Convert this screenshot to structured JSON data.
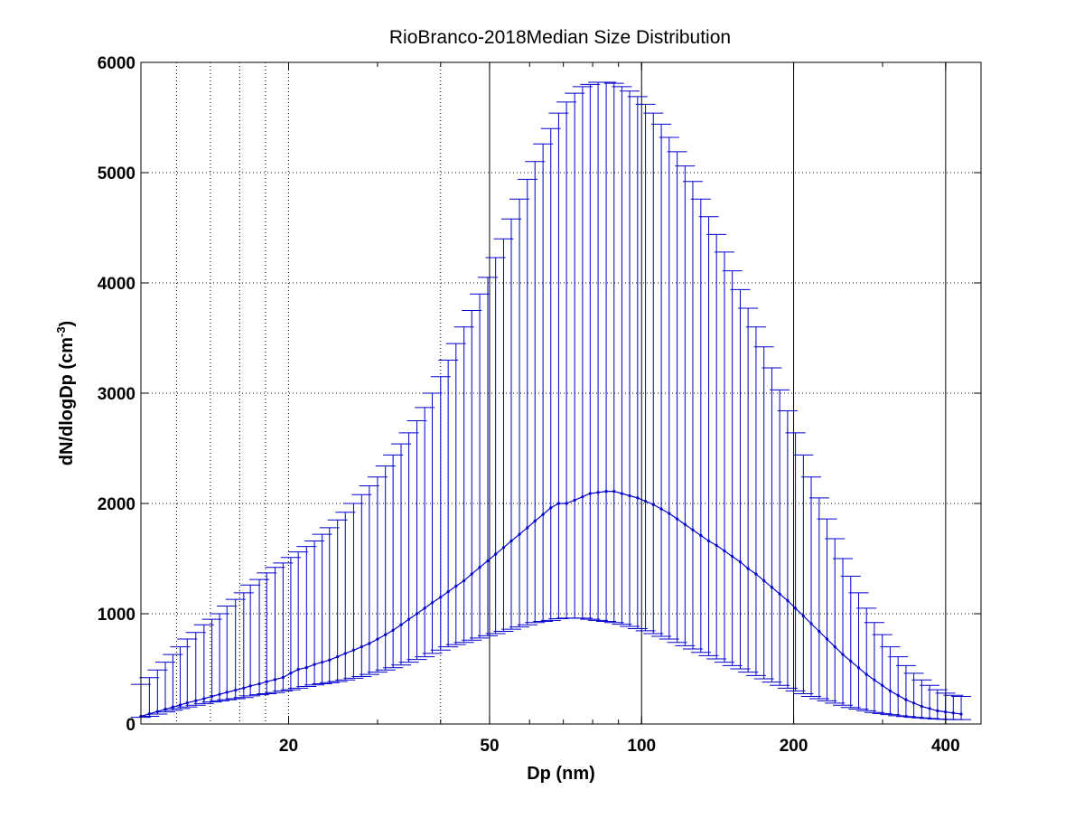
{
  "chart_data": {
    "type": "line",
    "title": "RioBranco-2018Median Size Distribution",
    "xlabel": "Dp (nm)",
    "ylabel_main": "dN/dlogDp (cm",
    "ylabel_exp": "-3",
    "ylabel_close": ")",
    "x_scale": "log",
    "xlim": [
      10.2,
      470
    ],
    "ylim": [
      0,
      6000
    ],
    "x_major_ticks": [
      20,
      50,
      100,
      200,
      400
    ],
    "x_tick_labels": [
      "20",
      "50",
      "100",
      "200",
      "400"
    ],
    "x_minor_ticks": [
      12,
      14,
      16,
      18,
      40
    ],
    "y_ticks": [
      0,
      1000,
      2000,
      3000,
      4000,
      5000,
      6000
    ],
    "y_tick_labels": [
      "0",
      "1000",
      "2000",
      "3000",
      "4000",
      "5000",
      "6000"
    ],
    "grid": true,
    "series_color": "#0000cc",
    "series": [
      {
        "x": [
          10.2,
          10.6,
          11.0,
          11.4,
          11.8,
          12.2,
          12.6,
          13.1,
          13.6,
          14.1,
          14.6,
          15.1,
          15.7,
          16.3,
          16.8,
          17.5,
          18.1,
          18.8,
          19.5,
          20.2,
          20.9,
          21.7,
          22.5,
          23.3,
          24.1,
          25.0,
          25.9,
          26.9,
          27.9,
          28.9,
          30.0,
          31.1,
          32.2,
          33.4,
          34.6,
          35.9,
          37.2,
          38.5,
          40.0,
          41.4,
          42.9,
          44.5,
          46.1,
          47.8,
          49.6,
          51.4,
          53.3,
          55.2,
          57.3,
          59.4,
          61.5,
          63.8,
          66.1,
          68.5,
          71.0,
          73.7,
          76.4,
          79.1,
          82.0,
          85.1,
          88.2,
          91.4,
          94.7,
          98.2,
          101.8,
          105.5,
          109.4,
          113.4,
          117.6,
          121.9,
          126.3,
          131.0,
          135.8,
          140.7,
          145.9,
          151.2,
          156.8,
          162.5,
          168.5,
          174.7,
          181.1,
          187.7,
          194.6,
          201.7,
          209.1,
          216.7,
          224.7,
          232.9,
          241.4,
          250.3,
          259.5,
          269.0,
          278.8,
          289.0,
          299.6,
          310.6,
          322.0,
          333.8,
          346.0,
          358.7,
          371.8,
          385.4,
          399.5,
          414.2,
          429.4
        ],
        "y": [
          70,
          92,
          113,
          134,
          154,
          173,
          192,
          211,
          230,
          250,
          269,
          288,
          307,
          326,
          345,
          364,
          384,
          403,
          422,
          461,
          495,
          511,
          540,
          560,
          580,
          610,
          640,
          670,
          700,
          730,
          770,
          810,
          850,
          900,
          950,
          1000,
          1050,
          1100,
          1150,
          1200,
          1250,
          1300,
          1360,
          1420,
          1480,
          1540,
          1600,
          1660,
          1720,
          1780,
          1840,
          1900,
          1960,
          2000,
          2000,
          2030,
          2060,
          2090,
          2100,
          2110,
          2110,
          2090,
          2070,
          2050,
          2020,
          1990,
          1950,
          1910,
          1860,
          1810,
          1760,
          1710,
          1660,
          1620,
          1570,
          1520,
          1470,
          1410,
          1360,
          1300,
          1240,
          1180,
          1120,
          1050,
          980,
          910,
          840,
          770,
          700,
          630,
          570,
          510,
          450,
          400,
          350,
          300,
          260,
          220,
          190,
          160,
          140,
          120,
          110,
          100,
          90
        ],
        "upper": [
          360,
          420,
          490,
          560,
          630,
          700,
          770,
          830,
          900,
          950,
          1000,
          1070,
          1130,
          1190,
          1260,
          1310,
          1370,
          1420,
          1460,
          1510,
          1560,
          1610,
          1660,
          1720,
          1780,
          1850,
          1920,
          2000,
          2080,
          2160,
          2240,
          2340,
          2440,
          2540,
          2640,
          2750,
          2870,
          3000,
          3150,
          3300,
          3450,
          3600,
          3750,
          3900,
          4050,
          4230,
          4400,
          4580,
          4760,
          4940,
          5100,
          5260,
          5400,
          5540,
          5640,
          5720,
          5780,
          5800,
          5820,
          5820,
          5810,
          5780,
          5740,
          5690,
          5620,
          5540,
          5440,
          5320,
          5190,
          5060,
          4920,
          4760,
          4600,
          4440,
          4280,
          4110,
          3940,
          3770,
          3600,
          3420,
          3230,
          3030,
          2840,
          2640,
          2440,
          2240,
          2050,
          1860,
          1680,
          1500,
          1340,
          1190,
          1050,
          920,
          810,
          700,
          610,
          530,
          460,
          400,
          350,
          310,
          280,
          260,
          250
        ],
        "lower": [
          60,
          70,
          90,
          110,
          125,
          140,
          155,
          170,
          185,
          200,
          210,
          220,
          230,
          240,
          255,
          265,
          275,
          285,
          300,
          310,
          325,
          340,
          355,
          365,
          375,
          385,
          400,
          415,
          430,
          450,
          470,
          490,
          510,
          535,
          560,
          585,
          610,
          640,
          670,
          700,
          720,
          740,
          760,
          780,
          800,
          820,
          840,
          860,
          880,
          900,
          920,
          930,
          940,
          955,
          960,
          960,
          960,
          950,
          940,
          930,
          920,
          905,
          885,
          865,
          845,
          820,
          795,
          770,
          740,
          710,
          680,
          650,
          620,
          590,
          560,
          530,
          500,
          470,
          440,
          410,
          380,
          350,
          325,
          300,
          275,
          250,
          230,
          210,
          190,
          170,
          150,
          135,
          120,
          105,
          95,
          85,
          75,
          68,
          60,
          55,
          50,
          45,
          42,
          40,
          40
        ]
      }
    ]
  }
}
